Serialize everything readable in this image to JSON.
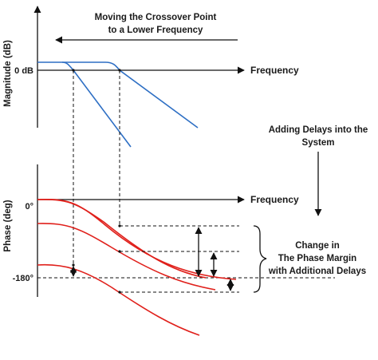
{
  "top_annotation": {
    "line1": "Moving the Crossover Point",
    "line2": "to a Lower Frequency"
  },
  "magnitude_plot": {
    "y_axis_label": "Magnitude (dB)",
    "x_axis_label": "Frequency",
    "zero_tick": "0 dB",
    "curve_color": "#2e6fc4"
  },
  "phase_plot": {
    "y_axis_label": "Phase (deg)",
    "x_axis_label": "Frequency",
    "tick_0": "0°",
    "tick_180": "-180°",
    "curve_color": "#e0201b"
  },
  "side_annotation": {
    "line1": "Adding Delays into the",
    "line2": "System"
  },
  "bracket_annotation": {
    "line1": "Change in",
    "line2": "The Phase Margin",
    "line3": "with Additional Delays"
  }
}
